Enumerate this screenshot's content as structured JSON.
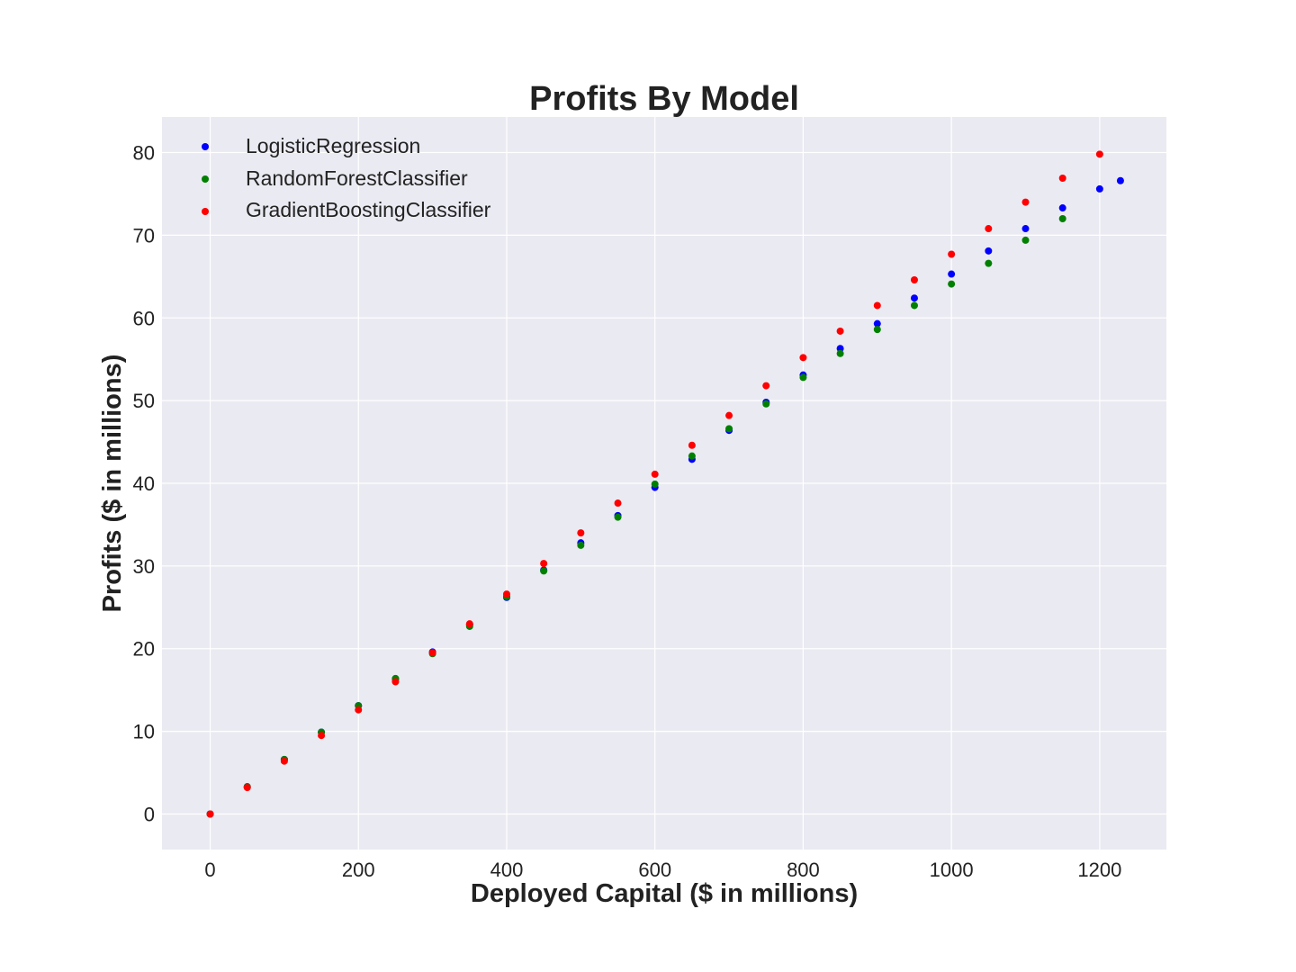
{
  "chart_data": {
    "type": "scatter",
    "title": "Profits By Model",
    "xlabel": "Deployed Capital ($ in millions)",
    "ylabel": "Profits ($ in millions)",
    "xlim": [
      -65,
      1290
    ],
    "ylim": [
      -4.3,
      84.3
    ],
    "xticks": [
      "0",
      "200",
      "400",
      "600",
      "800",
      "1000",
      "1200"
    ],
    "yticks": [
      "0",
      "10",
      "20",
      "30",
      "40",
      "50",
      "60",
      "70",
      "80"
    ],
    "grid": true,
    "legend_position": "top-left",
    "colors": {
      "background": "#eaeaf2",
      "grid": "#ffffff"
    },
    "series": [
      {
        "name": "LogisticRegression",
        "color": "#0000ff",
        "x": [
          0,
          50,
          100,
          150,
          200,
          250,
          300,
          350,
          400,
          450,
          500,
          550,
          600,
          650,
          700,
          750,
          800,
          850,
          900,
          950,
          1000,
          1050,
          1100,
          1150,
          1200,
          1228
        ],
        "y": [
          0,
          3.3,
          6.6,
          9.9,
          13.1,
          16.3,
          19.6,
          22.9,
          26.2,
          29.5,
          32.8,
          36.1,
          39.5,
          42.9,
          46.4,
          49.8,
          53.1,
          56.3,
          59.3,
          62.4,
          65.3,
          68.1,
          70.8,
          73.3,
          75.6,
          76.6
        ]
      },
      {
        "name": "RandomForestClassifier",
        "color": "#008000",
        "x": [
          0,
          50,
          100,
          150,
          200,
          250,
          300,
          350,
          400,
          450,
          500,
          550,
          600,
          650,
          700,
          750,
          800,
          850,
          900,
          950,
          1000,
          1050,
          1100,
          1150
        ],
        "y": [
          0,
          3.3,
          6.6,
          9.9,
          13.1,
          16.4,
          19.4,
          22.7,
          26.3,
          29.4,
          32.5,
          35.9,
          39.9,
          43.3,
          46.6,
          49.6,
          52.8,
          55.7,
          58.6,
          61.5,
          64.1,
          66.6,
          69.4,
          72.0
        ]
      },
      {
        "name": "GradientBoostingClassifier",
        "color": "#ff0000",
        "x": [
          0,
          50,
          100,
          150,
          200,
          250,
          300,
          350,
          400,
          450,
          500,
          550,
          600,
          650,
          700,
          750,
          800,
          850,
          900,
          950,
          1000,
          1050,
          1100,
          1150,
          1200
        ],
        "y": [
          0,
          3.2,
          6.4,
          9.5,
          12.6,
          16.0,
          19.5,
          23.0,
          26.6,
          30.3,
          34.0,
          37.6,
          41.1,
          44.6,
          48.2,
          51.8,
          55.2,
          58.4,
          61.5,
          64.6,
          67.7,
          70.8,
          74.0,
          76.9,
          79.8
        ]
      }
    ]
  }
}
